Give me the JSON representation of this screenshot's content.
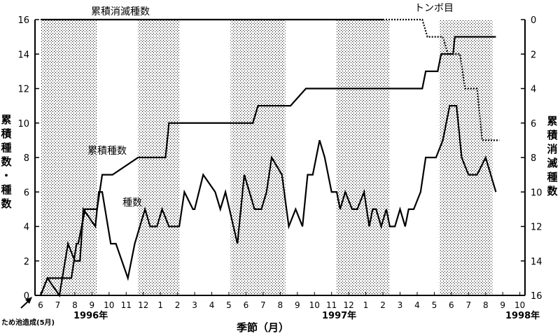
{
  "chart_data": {
    "type": "line",
    "xlabel": "季節（月）",
    "ylabel_left": [
      "累",
      "積",
      "種",
      "数",
      "・",
      "種",
      "数"
    ],
    "ylabel_right": [
      "累",
      "積",
      "消",
      "滅",
      "種",
      "数"
    ],
    "ylim_left": [
      0,
      16
    ],
    "ylim_right": [
      16,
      0
    ],
    "yticks_left": [
      "0",
      "2",
      "4",
      "6",
      "8",
      "10",
      "12",
      "14",
      "16"
    ],
    "yticks_right": [
      "16",
      "14",
      "12",
      "10",
      "8",
      "6",
      "4",
      "2",
      "0"
    ],
    "month_ticks": [
      "6",
      "7",
      "8",
      "9",
      "10",
      "11",
      "12",
      "1",
      "2",
      "3",
      "4",
      "5",
      "6",
      "7",
      "8",
      "9",
      "10",
      "11",
      "12",
      "1",
      "2",
      "3",
      "4",
      "5",
      "6",
      "7",
      "8",
      "9",
      "10"
    ],
    "years": [
      "1996年",
      "1997年",
      "1998年"
    ],
    "note": "ため池造成(5月)",
    "shaded_month_spans": [
      [
        0,
        3.3
      ],
      [
        5.7,
        8.1
      ],
      [
        11.1,
        14.3
      ],
      [
        17.3,
        20.4
      ],
      [
        23.3,
        26.4
      ]
    ],
    "series": [
      {
        "name": "累積種数",
        "axis": "left",
        "style": "solid",
        "x": [
          0,
          0.4,
          1.8,
          2.1,
          2.2,
          2.6,
          3.3,
          3.6,
          4.2,
          5.7,
          5.9,
          7.3,
          7.5,
          9.9,
          10.2,
          12.4,
          12.7,
          14.5,
          14.6,
          15.5,
          16.0,
          18.2,
          18.4,
          22.3,
          22.5,
          23.2,
          23.4,
          24.1,
          24.2,
          26.6
        ],
        "values": [
          0,
          1,
          1,
          3,
          3,
          5,
          5,
          7,
          7,
          8,
          8,
          8,
          10,
          10,
          10,
          10,
          11,
          11,
          11,
          12,
          12,
          12,
          12,
          12,
          13,
          13,
          14,
          14,
          15,
          15
        ]
      },
      {
        "name": "種数",
        "axis": "left",
        "style": "solid",
        "x": [
          0,
          0.4,
          1.1,
          1.6,
          2.0,
          2.3,
          2.5,
          3.2,
          3.4,
          3.6,
          4.1,
          4.4,
          5.1,
          5.5,
          6.1,
          6.4,
          6.8,
          7.1,
          7.5,
          8.1,
          8.4,
          8.9,
          9.0,
          9.5,
          10.2,
          10.5,
          10.8,
          11.5,
          11.9,
          12.5,
          12.9,
          13.2,
          13.5,
          14.1,
          14.5,
          14.9,
          15.3,
          15.6,
          15.9,
          16.3,
          16.6,
          17.0,
          17.3,
          17.5,
          17.8,
          18.2,
          18.5,
          18.9,
          19.2,
          19.4,
          19.6,
          19.9,
          20.2,
          20.4,
          20.7,
          21.0,
          21.3,
          21.5,
          21.8,
          22.2,
          22.5,
          23.1,
          23.5,
          23.9,
          24.3,
          24.6,
          25.0,
          25.5,
          26.0,
          26.6
        ],
        "values": [
          0,
          1,
          0,
          3,
          2,
          2,
          5,
          4,
          6,
          6,
          3,
          3,
          1,
          3,
          5,
          4,
          4,
          5,
          4,
          4,
          6,
          5,
          5,
          7,
          6,
          5,
          6,
          3,
          7,
          5,
          5,
          6,
          8,
          7,
          4,
          5,
          4,
          7,
          7,
          9,
          8,
          6,
          6,
          5,
          6,
          5,
          5,
          6,
          4,
          5,
          5,
          4,
          5,
          4,
          4,
          5,
          4,
          5,
          5,
          6,
          8,
          8,
          9,
          11,
          11,
          8,
          7,
          7,
          8,
          6
        ]
      },
      {
        "name": "累積消滅種数",
        "axis": "right",
        "style": "solid",
        "x": [
          0,
          20.0
        ],
        "values": [
          0,
          0
        ]
      },
      {
        "name": "トンボ目",
        "axis": "right",
        "style": "dotted",
        "x": [
          20.0,
          22.3,
          22.6,
          23.5,
          23.8,
          24.5,
          24.8,
          25.5,
          25.8,
          26.4,
          26.8
        ],
        "values": [
          0,
          0,
          1,
          1,
          2,
          2,
          4,
          4,
          7,
          7,
          7
        ]
      }
    ],
    "series_labels": [
      "累積消滅種数",
      "トンボ目",
      "累積種数",
      "種数"
    ]
  }
}
